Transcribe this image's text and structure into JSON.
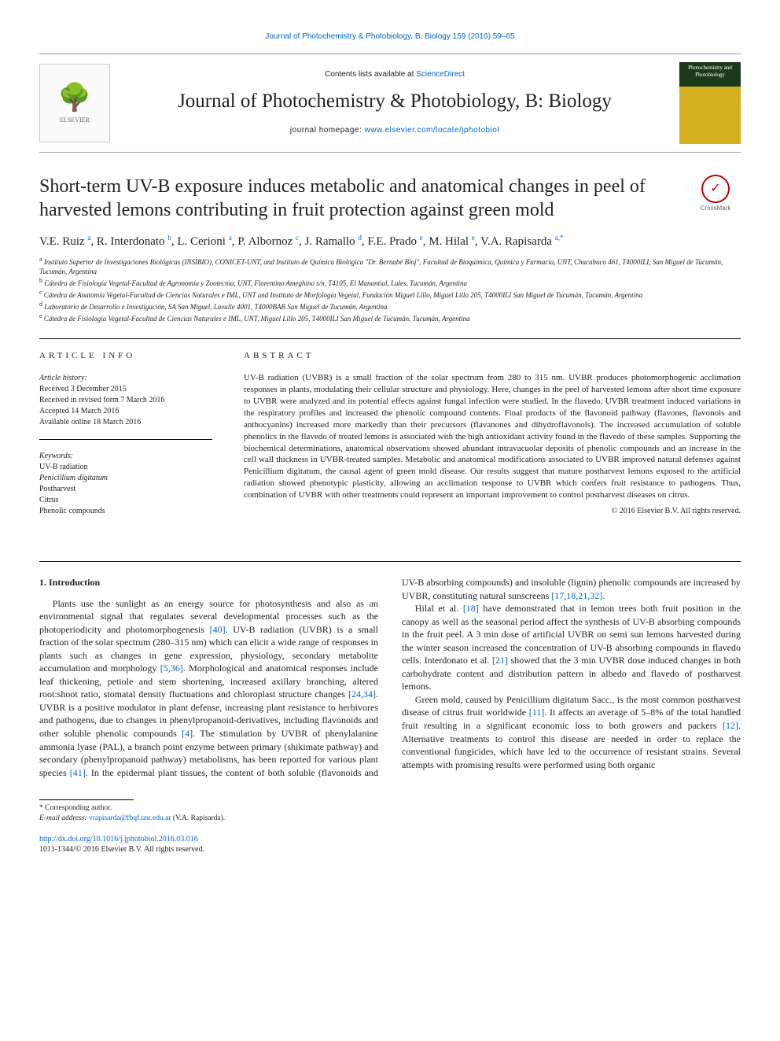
{
  "colors": {
    "link": "#0066cc",
    "text": "#222222",
    "rule": "#000000",
    "muted": "#666666"
  },
  "top_link": {
    "label": "Journal of Photochemistry & Photobiology, B: Biology 159 (2016) 59–65"
  },
  "header": {
    "contents_prefix": "Contents lists available at ",
    "contents_link": "ScienceDirect",
    "journal_name": "Journal of Photochemistry & Photobiology, B: Biology",
    "homepage_prefix": "journal homepage: ",
    "homepage_url": "www.elsevier.com/locate/jphotobiol",
    "publisher_logo_label": "ELSEVIER",
    "cover_label": "Photochemistry and Photobiology"
  },
  "crossmark_label": "CrossMark",
  "title": "Short-term UV-B exposure induces metabolic and anatomical changes in peel of harvested lemons contributing in fruit protection against green mold",
  "authors_html": "V.E. Ruiz <sup>a</sup>, R. Interdonato <sup>b</sup>, L. Cerioni <sup>a</sup>, P. Albornoz <sup>c</sup>, J. Ramallo <sup>d</sup>, F.E. Prado <sup>e</sup>, M. Hilal <sup>e</sup>, V.A. Rapisarda <sup>a,*</sup>",
  "affiliations": [
    {
      "sup": "a",
      "text": "Instituto Superior de Investigaciones Biológicas (INSIBIO), CONICET-UNT, and Instituto de Química Biológica \"Dr. Bernabé Bloj\", Facultad de Bioquímica, Química y Farmacia, UNT, Chacabuco 461, T4000ILI, San Miguel de Tucumán, Tucumán, Argentina"
    },
    {
      "sup": "b",
      "text": "Cátedra de Fisiología Vegetal-Facultad de Agronomía y Zootecnia, UNT, Florentino Ameghino s/n, T4105, El Manantial, Lules, Tucumán, Argentina"
    },
    {
      "sup": "c",
      "text": "Cátedra de Anatomía Vegetal-Facultad de Ciencias Naturales e IML, UNT and Instituto de Morfología Vegetal, Fundación Miguel Lillo, Miguel Lillo 205, T4000ILI San Miguel de Tucumán, Tucumán, Argentina"
    },
    {
      "sup": "d",
      "text": "Laboratorio de Desarrollo e Investigación, SA San Miguel, Lavalle 4001, T4000BAB San Miguel de Tucumán, Argentina"
    },
    {
      "sup": "e",
      "text": "Cátedra de Fisiología Vegetal-Facultad de Ciencias Naturales e IML, UNT, Miguel Lillo 205, T4000ILI San Miguel de Tucumán, Tucumán, Argentina"
    }
  ],
  "article_info": {
    "heading": "ARTICLE INFO",
    "history_label": "Article history:",
    "history": [
      "Received 3 December 2015",
      "Received in revised form 7 March 2016",
      "Accepted 14 March 2016",
      "Available online 18 March 2016"
    ],
    "keywords_label": "Keywords:",
    "keywords": [
      "UV-B radiation",
      "Penicillium digitatum",
      "Postharvest",
      "Citrus",
      "Phenolic compounds"
    ]
  },
  "abstract": {
    "heading": "ABSTRACT",
    "text": "UV-B radiation (UVBR) is a small fraction of the solar spectrum from 280 to 315 nm. UVBR produces photomorphogenic acclimation responses in plants, modulating their cellular structure and physiology. Here, changes in the peel of harvested lemons after short time exposure to UVBR were analyzed and its potential effects against fungal infection were studied. In the flavedo, UVBR treatment induced variations in the respiratory profiles and increased the phenolic compound contents. Final products of the flavonoid pathway (flavones, flavonols and anthocyanins) increased more markedly than their precursors (flavanones and dihydroflavonols). The increased accumulation of soluble phenolics in the flavedo of treated lemons is associated with the high antioxidant activity found in the flavedo of these samples. Supporting the biochemical determinations, anatomical observations showed abundant intravacuolar deposits of phenolic compounds and an increase in the cell wall thickness in UVBR-treated samples. Metabolic and anatomical modifications associated to UVBR improved natural defenses against Penicillium digitatum, the causal agent of green mold disease. Our results suggest that mature postharvest lemons exposed to the artificial radiation showed phenotypic plasticity, allowing an acclimation response to UVBR which confers fruit resistance to pathogens. Thus, combination of UVBR with other treatments could represent an important improvement to control postharvest diseases on citrus.",
    "copyright": "© 2016 Elsevier B.V. All rights reserved."
  },
  "body": {
    "section_heading": "1. Introduction",
    "p1a": "Plants use the sunlight as an energy source for photosynthesis and also as an environmental signal that regulates several developmental processes such as the photoperiodicity and photomorphogenesis ",
    "r40": "[40]",
    "p1b": ". UV-B radiation (UVBR) is a small fraction of the solar spectrum (280–315 nm) which can elicit a wide range of responses in plants such as changes in gene expression, physiology, secondary metabolite accumulation and morphology ",
    "r5_36": "[5,36]",
    "p1c": ". Morphological and anatomical responses include leaf thickening, petiole and stem shortening, increased axillary branching, altered root:shoot ratio, stomatal density fluctuations and chloroplast structure changes ",
    "r24_34": "[24,34]",
    "p1d": ". UVBR is a positive modulator in plant defense, increasing plant resistance to herbivores and pathogens, due to changes in phenylpropanoid-derivatives, including flavonoids and other soluble phenolic compounds ",
    "r4": "[4]",
    "p1e": ". The stimulation by UVBR of phenylalanine ammonia lyase (PAL), a branch point enzyme between primary (shikimate pathway) and secondary (phenylpropanoid pathway) metabolisms, has been reported for various plant species ",
    "r41": "[41]",
    "p1f": ". In the epidermal plant tissues, the content of both soluble (flavonoids and UV-B absorbing compounds) and insoluble (lignin) phenolic compounds are increased by UVBR, constituting natural sunscreens ",
    "r17_18_21_32": "[17,18,21,32]",
    "p1g": ".",
    "p2a": "Hilal et al. ",
    "r18": "[18]",
    "p2b": " have demonstrated that in lemon trees both fruit position in the canopy as well as the seasonal period affect the synthesis of UV-B absorbing compounds in the fruit peel. A 3 min dose of artificial UVBR on semi sun lemons harvested during the winter season increased the concentration of UV-B absorbing compounds in flavedo cells. Interdonato et al. ",
    "r21": "[21]",
    "p2c": " showed that the 3 min UVBR dose induced changes in both carbohydrate content and distribution pattern in albedo and flavedo of postharvest lemons.",
    "p3a": "Green mold, caused by Penicillium digitatum Sacc., is the most common postharvest disease of citrus fruit worldwide ",
    "r11": "[11]",
    "p3b": ". It affects an average of 5–8% of the total handled fruit resulting in a significant economic loss to both growers and packers ",
    "r12": "[12]",
    "p3c": ". Alternative treatments to control this disease are needed in order to replace the conventional fungicides, which have led to the occurrence of resistant strains. Several attempts with promising results were performed using both organic"
  },
  "footer": {
    "corr_label": "* Corresponding author.",
    "email_label": "E-mail address: ",
    "email": "vrapisarda@fbqf.unt.edu.ar",
    "email_suffix": " (V.A. Rapisarda).",
    "doi": "http://dx.doi.org/10.1016/j.jphotobiol.2016.03.016",
    "issn_line": "1011-1344/© 2016 Elsevier B.V. All rights reserved."
  }
}
